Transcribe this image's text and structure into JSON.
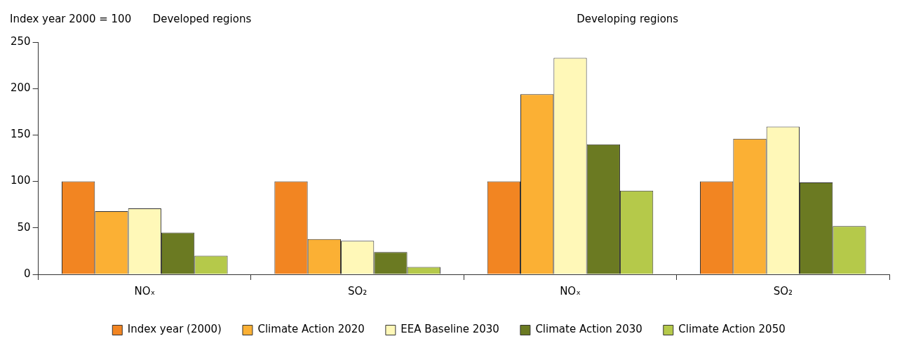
{
  "chart_data": {
    "type": "bar",
    "ylabel": "Index year 2000 = 100",
    "annotations": [
      "Developed regions",
      "Developing regions"
    ],
    "categories": [
      "NOₓ",
      "SO₂",
      "NOₓ",
      "SO₂"
    ],
    "series": [
      {
        "name": "Index year (2000)",
        "color": "#f28522",
        "values": [
          100,
          100,
          100,
          100
        ]
      },
      {
        "name": "Climate Action 2020",
        "color": "#fbb034",
        "values": [
          68,
          38,
          194,
          146
        ]
      },
      {
        "name": "EEA Baseline 2030",
        "color": "#fff8b8",
        "values": [
          71,
          36,
          233,
          159
        ]
      },
      {
        "name": "Climate Action 2030",
        "color": "#6b7a22",
        "values": [
          45,
          24,
          140,
          99
        ]
      },
      {
        "name": "Climate Action 2050",
        "color": "#b5c94a",
        "values": [
          20,
          8,
          90,
          52
        ]
      }
    ],
    "ylim": [
      0,
      250
    ],
    "yticks": [
      0,
      50,
      100,
      150,
      200,
      250
    ],
    "grid": false,
    "legend": "bottom"
  }
}
